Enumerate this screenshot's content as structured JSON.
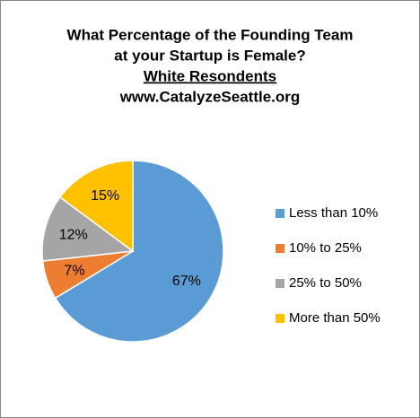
{
  "chart_data": {
    "type": "pie",
    "title_lines": [
      "What Percentage of the Founding Team",
      "at your Startup is Female?",
      "White Resondents",
      "www.CatalyzeSeattle.org"
    ],
    "categories": [
      "Less than 10%",
      "10% to 25%",
      "25% to 50%",
      "More than 50%"
    ],
    "values": [
      67,
      7,
      12,
      15
    ],
    "value_labels": [
      "67%",
      "7%",
      "12%",
      "15%"
    ],
    "colors": [
      "#5b9bd5",
      "#ed7d31",
      "#a5a5a5",
      "#ffc000"
    ],
    "legend": "right"
  }
}
